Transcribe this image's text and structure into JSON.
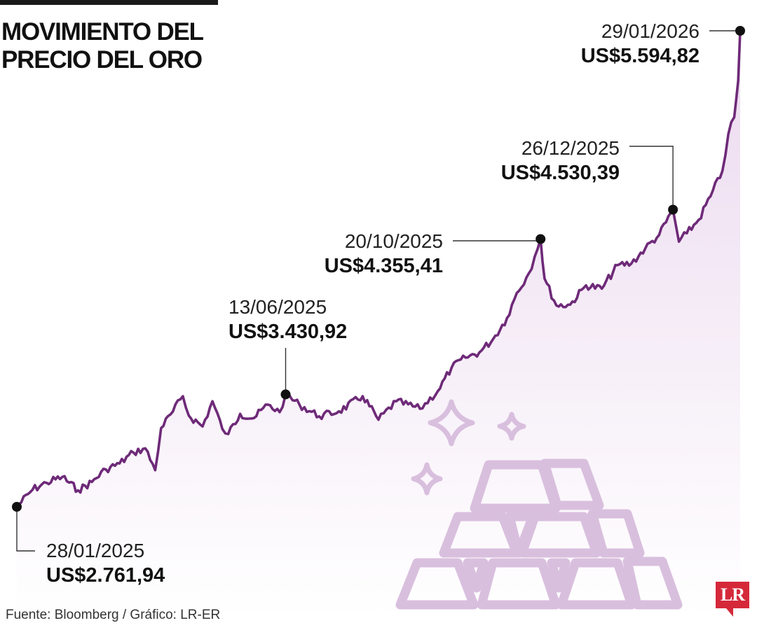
{
  "header": {
    "title_line1": "MOVIMIENTO DEL",
    "title_line2": "PRECIO DEL ORO"
  },
  "footer": {
    "source": "Fuente: Bloomberg / Gráfico: LR-ER",
    "logo": "LR"
  },
  "colors": {
    "line": "#6e2a78",
    "area_top": "#e8d3ec",
    "area_bottom": "#ffffff",
    "illustration": "#d9bfde",
    "marker": "#111111",
    "logo": "#d5293a"
  },
  "icons": [
    "gold-bars-icon",
    "sparkle-icon"
  ],
  "chart_data": {
    "type": "area",
    "title": "MOVIMIENTO DEL PRECIO DEL ORO",
    "ylabel": "",
    "xlabel": "",
    "x_range": [
      "2025-01-28",
      "2026-01-29"
    ],
    "ylim": [
      2050,
      5650
    ],
    "grid": false,
    "series": [
      {
        "values": [
          [
            "2025-01-28",
            2761.94
          ],
          [
            "2025-02-05",
            2865
          ],
          [
            "2025-02-12",
            2905
          ],
          [
            "2025-02-20",
            2940
          ],
          [
            "2025-02-28",
            2860
          ],
          [
            "2025-03-07",
            2910
          ],
          [
            "2025-03-14",
            2985
          ],
          [
            "2025-03-21",
            3020
          ],
          [
            "2025-03-28",
            3085
          ],
          [
            "2025-04-03",
            3110
          ],
          [
            "2025-04-08",
            2980
          ],
          [
            "2025-04-11",
            3230
          ],
          [
            "2025-04-17",
            3330
          ],
          [
            "2025-04-22",
            3420
          ],
          [
            "2025-04-25",
            3305
          ],
          [
            "2025-05-02",
            3240
          ],
          [
            "2025-05-07",
            3390
          ],
          [
            "2025-05-12",
            3225
          ],
          [
            "2025-05-15",
            3195
          ],
          [
            "2025-05-21",
            3315
          ],
          [
            "2025-05-28",
            3290
          ],
          [
            "2025-06-04",
            3370
          ],
          [
            "2025-06-10",
            3325
          ],
          [
            "2025-06-13",
            3430.92
          ],
          [
            "2025-06-20",
            3370
          ],
          [
            "2025-06-30",
            3300
          ],
          [
            "2025-07-10",
            3330
          ],
          [
            "2025-07-22",
            3420
          ],
          [
            "2025-07-30",
            3280
          ],
          [
            "2025-08-08",
            3390
          ],
          [
            "2025-08-20",
            3345
          ],
          [
            "2025-08-29",
            3450
          ],
          [
            "2025-09-05",
            3590
          ],
          [
            "2025-09-12",
            3650
          ],
          [
            "2025-09-19",
            3680
          ],
          [
            "2025-09-26",
            3760
          ],
          [
            "2025-10-03",
            3885
          ],
          [
            "2025-10-08",
            4035
          ],
          [
            "2025-10-14",
            4150
          ],
          [
            "2025-10-17",
            4250
          ],
          [
            "2025-10-20",
            4355.41
          ],
          [
            "2025-10-22",
            4120
          ],
          [
            "2025-10-28",
            3960
          ],
          [
            "2025-11-04",
            3965
          ],
          [
            "2025-11-12",
            4080
          ],
          [
            "2025-11-20",
            4060
          ],
          [
            "2025-11-28",
            4200
          ],
          [
            "2025-12-05",
            4210
          ],
          [
            "2025-12-12",
            4300
          ],
          [
            "2025-12-19",
            4380
          ],
          [
            "2025-12-26",
            4530.39
          ],
          [
            "2025-12-29",
            4340
          ],
          [
            "2026-01-02",
            4390
          ],
          [
            "2026-01-08",
            4470
          ],
          [
            "2026-01-14",
            4610
          ],
          [
            "2026-01-20",
            4760
          ],
          [
            "2026-01-23",
            4980
          ],
          [
            "2026-01-26",
            5080
          ],
          [
            "2026-01-28",
            5300
          ],
          [
            "2026-01-29",
            5594.82
          ]
        ]
      }
    ],
    "annotations": [
      {
        "date": "28/01/2025",
        "value": "US$2.761,94"
      },
      {
        "date": "13/06/2025",
        "value": "US$3.430,92"
      },
      {
        "date": "20/10/2025",
        "value": "US$4.355,41"
      },
      {
        "date": "26/12/2025",
        "value": "US$4.530,39"
      },
      {
        "date": "29/01/2026",
        "value": "US$5.594,82"
      }
    ]
  }
}
